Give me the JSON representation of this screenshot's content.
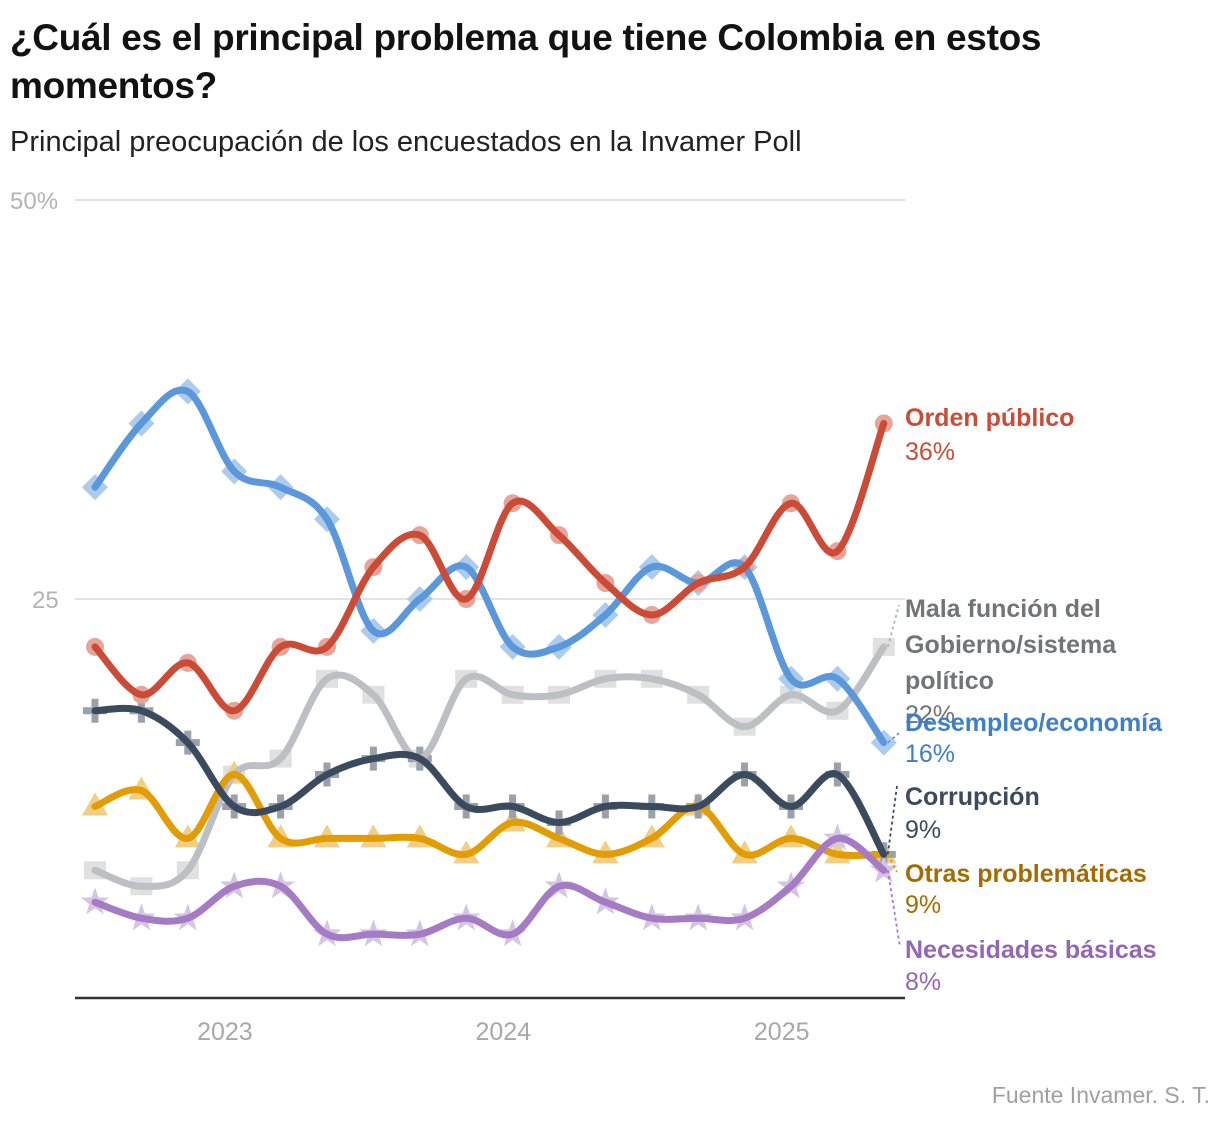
{
  "header": {
    "title": "¿Cuál es el principal problema que tiene Colombia en estos momentos?",
    "subtitle": "Principal preocupación de los encuestados en la Invamer Poll"
  },
  "footer": {
    "source": "Fuente Invamer. S. T."
  },
  "chart_data": {
    "type": "line",
    "title": "¿Cuál es el principal problema que tiene Colombia en estos momentos?",
    "subtitle": "Principal preocupación de los encuestados en la Invamer Poll",
    "xlabel": "",
    "ylabel": "",
    "ylim": [
      0,
      50
    ],
    "y_ticks": [
      {
        "value": 25,
        "label": "25"
      },
      {
        "value": 50,
        "label": "50%"
      }
    ],
    "x_ticks": [
      {
        "index": 2.8,
        "label": "2023"
      },
      {
        "index": 8.8,
        "label": "2024"
      },
      {
        "index": 14.8,
        "label": "2025"
      }
    ],
    "n_points": 18,
    "grid": true,
    "legend": "direct-labels-right",
    "series": [
      {
        "name": "Orden público",
        "value_label": "36%",
        "color": "#cc4b37",
        "label_color": "#cc4b37",
        "marker": "circle",
        "values": [
          22,
          19,
          21,
          18,
          22,
          22,
          27,
          29,
          25,
          31,
          29,
          26,
          24,
          26,
          27,
          31,
          28,
          36
        ]
      },
      {
        "name": "Mala función del Gobierno/sistema político",
        "name_lines": [
          "Mala función del",
          "Gobierno/sistema",
          "político"
        ],
        "value_label": "22%",
        "color": "#bcc0c4",
        "label_color": "#707579",
        "marker": "square",
        "values": [
          8,
          7,
          8,
          14,
          15,
          20,
          19,
          15,
          20,
          19,
          19,
          20,
          20,
          19,
          17,
          19,
          18,
          22
        ]
      },
      {
        "name": "Desempleo/economía",
        "value_label": "16%",
        "color": "#5a97db",
        "label_color": "#3f7ec9",
        "marker": "diamond",
        "values": [
          32,
          36,
          38,
          33,
          32,
          30,
          23,
          25,
          27,
          22,
          22,
          24,
          27,
          26,
          27,
          20,
          20,
          16
        ]
      },
      {
        "name": "Corrupción",
        "value_label": "9%",
        "color": "#3b4a5e",
        "label_color": "#3b4a5e",
        "marker": "plus",
        "values": [
          18,
          18,
          16,
          12,
          12,
          14,
          15,
          15,
          12,
          12,
          11,
          12,
          12,
          12,
          14,
          12,
          14,
          9
        ]
      },
      {
        "name": "Otras problemáticas",
        "value_label": "9%",
        "color": "#e29d05",
        "label_color": "#a56b00",
        "marker": "triangle",
        "values": [
          12,
          13,
          10,
          14,
          10,
          10,
          10,
          10,
          9,
          11,
          10,
          9,
          10,
          12,
          9,
          10,
          9,
          9
        ]
      },
      {
        "name": "Necesidades básicas",
        "value_label": "8%",
        "color": "#a47bc4",
        "label_color": "#9366b8",
        "marker": "star",
        "values": [
          6,
          5,
          5,
          7,
          7,
          4,
          4,
          4,
          5,
          4,
          7,
          6,
          5,
          5,
          5,
          7,
          10,
          8
        ]
      }
    ]
  }
}
